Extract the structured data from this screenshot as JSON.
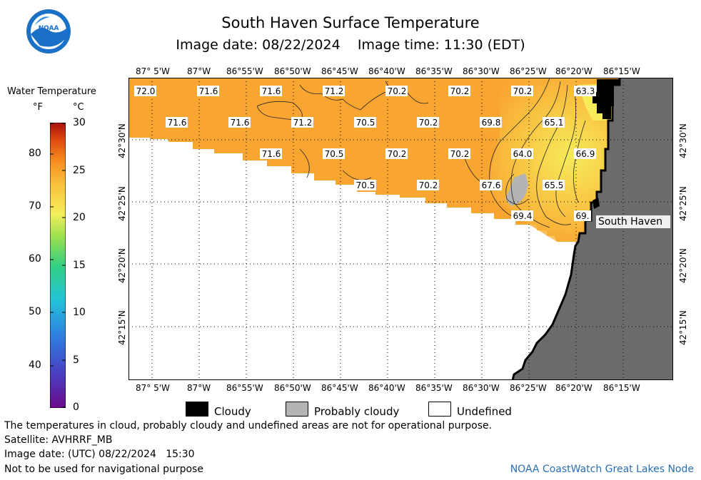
{
  "title": "South Haven Surface Temperature",
  "subtitle_date_label": "Image date: 08/22/2024",
  "subtitle_time_label": "Image time: 11:30 (EDT)",
  "logo_text": "NOAA",
  "colorbar": {
    "title": "Water Temperature",
    "unit_f": "°F",
    "unit_c": "°C",
    "f_ticks": [
      "80",
      "70",
      "60",
      "50",
      "40"
    ],
    "c_ticks": [
      "30",
      "25",
      "20",
      "15",
      "10",
      "5",
      "0"
    ]
  },
  "axes": {
    "lon_labels": [
      "87° 5'W",
      "87°W",
      "86°55'W",
      "86°50'W",
      "86°45'W",
      "86°40'W",
      "86°35'W",
      "86°30'W",
      "86°25'W",
      "86°20'W",
      "86°15'W"
    ],
    "lat_labels": [
      "42°30'N",
      "42°25'N",
      "42°20'N",
      "42°15'N"
    ]
  },
  "place_label": "South Haven",
  "temperature_labels": [
    "72.0",
    "71.6",
    "71.6",
    "71.2",
    "70.2",
    "70.2",
    "70.2",
    "63.3",
    "71.6",
    "71.6",
    "71.2",
    "70.5",
    "70.2",
    "69.8",
    "65.1",
    "71.6",
    "70.5",
    "70.2",
    "70.2",
    "64.0",
    "66.9",
    "70.5",
    "70.2",
    "67.6",
    "65.5",
    "69.4",
    "69."
  ],
  "legend": {
    "cloudy": "Cloudy",
    "probably_cloudy": "Probably cloudy",
    "undefined": "Undefined"
  },
  "footer": {
    "disclaimer": "The temperatures in cloud, probably cloudy and undefined areas are not for operational purpose.",
    "satellite": "Satellite: AVHRRF_MB",
    "utc_date": "Image date: (UTC) 08/22/2024   15:30",
    "nav_warning": "Not to be used for navigational purpose",
    "credit": "NOAA CoastWatch Great Lakes Node"
  },
  "colors": {
    "water_warm": "#f9a531",
    "water_cool": "#f7e74a",
    "land": "#6b6b6b",
    "cloud": "#000000",
    "probably_cloudy": "#b4b4b4",
    "credit_blue": "#2a6fb5"
  }
}
